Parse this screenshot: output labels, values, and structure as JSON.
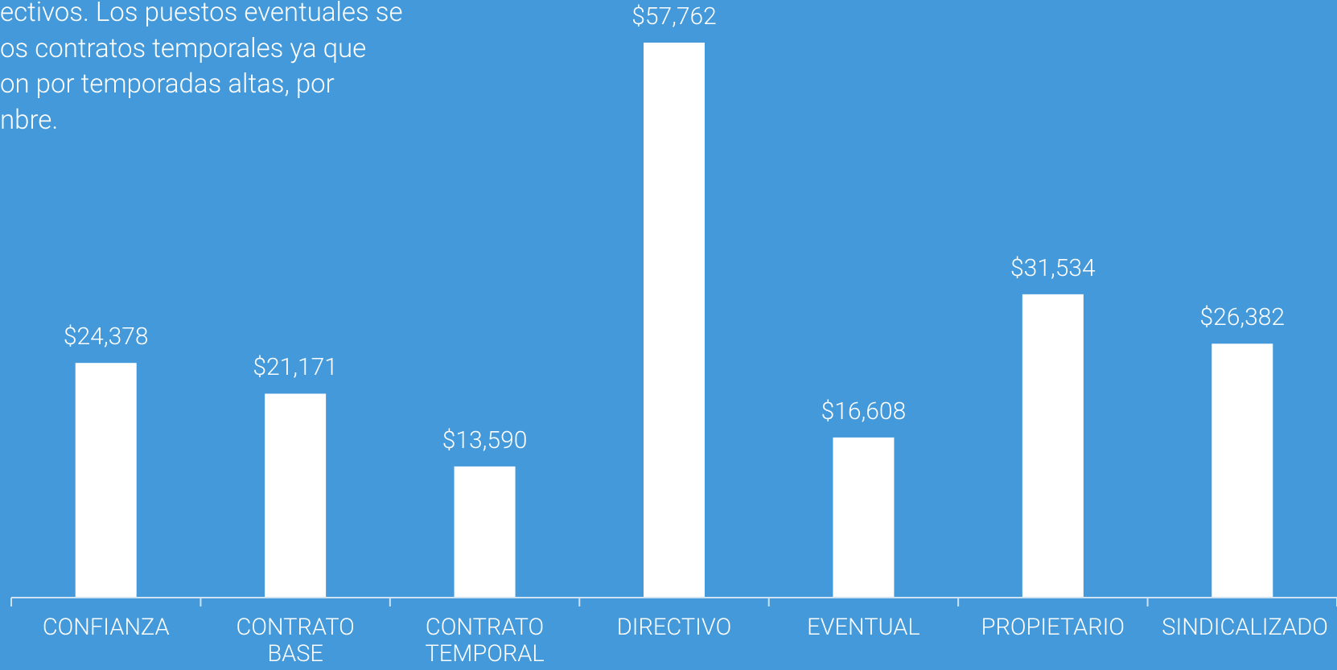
{
  "chart_data": {
    "type": "bar",
    "annotation_lines": [
      "ectivos. Los puestos eventuales se",
      "os contratos temporales ya que",
      "on por temporadas altas, por",
      "nbre."
    ],
    "categories": [
      "CONFIANZA",
      "CONTRATO BASE",
      "CONTRATO TEMPORAL",
      "DIRECTIVO",
      "EVENTUAL",
      "PROPIETARIO",
      "SINDICALIZADO"
    ],
    "values": [
      24378,
      21171,
      13590,
      57762,
      16608,
      31534,
      26382
    ],
    "value_labels": [
      "$24,378",
      "$21,171",
      "$13,590",
      "$57,762",
      "$16,608",
      "$31,534",
      "$26,382"
    ],
    "color": "#ffffff",
    "background": "#4399d9",
    "grid": false
  }
}
